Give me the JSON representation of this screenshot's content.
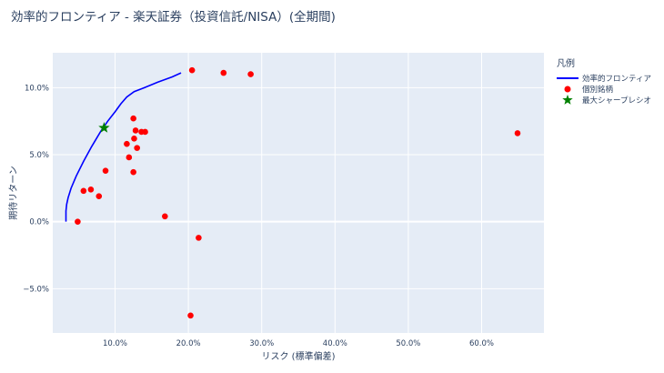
{
  "chart_data": {
    "type": "scatter",
    "title": "効率的フロンティア - 楽天証券（投資信託/NISA）(全期間)",
    "xlabel": "リスク (標準偏差)",
    "ylabel": "期待リターン",
    "xlim": [
      0.015,
      0.685
    ],
    "ylim": [
      -0.083,
      0.126
    ],
    "x_ticks": [
      0.1,
      0.2,
      0.3,
      0.4,
      0.5,
      0.6
    ],
    "x_tick_labels": [
      "10.0%",
      "20.0%",
      "30.0%",
      "40.0%",
      "50.0%",
      "60.0%"
    ],
    "y_ticks": [
      -0.05,
      0.0,
      0.05,
      0.1
    ],
    "y_tick_labels": [
      "−5.0%",
      "0.0%",
      "5.0%",
      "10.0%"
    ],
    "grid": true,
    "legend": {
      "title": "凡例",
      "position": "right",
      "items": [
        {
          "label": "効率的フロンティア",
          "type": "line",
          "color": "#0000ff"
        },
        {
          "label": "個別銘柄",
          "type": "dot",
          "color": "#ff0000"
        },
        {
          "label": "最大シャープレシオ",
          "type": "star",
          "color": "#008000"
        }
      ]
    },
    "series": [
      {
        "name": "効率的フロンティア",
        "type": "line",
        "color": "#0000ff",
        "x": [
          0.033,
          0.033,
          0.034,
          0.036,
          0.04,
          0.047,
          0.057,
          0.068,
          0.08,
          0.09,
          0.1,
          0.108,
          0.116,
          0.126,
          0.14,
          0.158,
          0.178,
          0.19
        ],
        "y": [
          0.0,
          0.008,
          0.013,
          0.018,
          0.025,
          0.034,
          0.045,
          0.056,
          0.067,
          0.075,
          0.082,
          0.088,
          0.093,
          0.097,
          0.1,
          0.104,
          0.108,
          0.111
        ]
      },
      {
        "name": "個別銘柄",
        "type": "scatter",
        "color": "#ff0000",
        "x": [
          0.205,
          0.248,
          0.285,
          0.649,
          0.125,
          0.128,
          0.136,
          0.141,
          0.126,
          0.116,
          0.13,
          0.119,
          0.087,
          0.125,
          0.057,
          0.067,
          0.078,
          0.049,
          0.168,
          0.214,
          0.203
        ],
        "y": [
          0.113,
          0.111,
          0.11,
          0.066,
          0.077,
          0.068,
          0.067,
          0.067,
          0.062,
          0.058,
          0.055,
          0.048,
          0.038,
          0.037,
          0.023,
          0.024,
          0.019,
          0.0,
          0.004,
          -0.012,
          -0.07
        ]
      },
      {
        "name": "最大シャープレシオ",
        "type": "star",
        "color": "#008000",
        "x": [
          0.085
        ],
        "y": [
          0.07
        ]
      }
    ]
  }
}
